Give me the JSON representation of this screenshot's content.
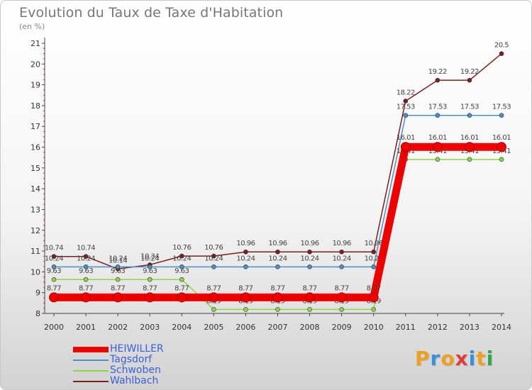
{
  "title": "Evolution du Taux de Taxe d'Habitation",
  "unit_label": "(en %)",
  "logo": {
    "letters": [
      "P",
      "r",
      "o",
      "x",
      "i",
      "t",
      "i"
    ],
    "colors": [
      "#f0a020",
      "#3a8fd8",
      "#f0a020",
      "#e23b3b",
      "#3a8fd8",
      "#f0a020",
      "#2fa84f"
    ]
  },
  "chart_data": {
    "type": "line",
    "x": [
      "2000",
      "2001",
      "2002",
      "2003",
      "2004",
      "2005",
      "2006",
      "2007",
      "2008",
      "2009",
      "2010",
      "2011",
      "2012",
      "2013",
      "2014"
    ],
    "ylim": [
      8,
      21
    ],
    "yticks": [
      "8",
      "9",
      "10",
      "11",
      "12",
      "13",
      "14",
      "15",
      "16",
      "17",
      "18",
      "19",
      "20",
      "21"
    ],
    "grid": false,
    "legend_position": "bottom-left",
    "series": [
      {
        "name": "Wahlbach",
        "color": "#7a2020",
        "values": [
          10.74,
          10.74,
          10.14,
          10.34,
          10.76,
          10.76,
          10.96,
          10.96,
          10.96,
          10.96,
          10.96,
          18.22,
          19.22,
          19.22,
          20.5
        ],
        "labels": [
          "10.74",
          "10.74",
          "10.14",
          "10.34",
          "10.76",
          "10.76",
          "10.96",
          "10.96",
          "10.96",
          "10.96",
          "10.96",
          "18.22",
          "19.22",
          "19.22",
          "20.5"
        ]
      },
      {
        "name": "Tagsdorf",
        "color": "#4d8fc4",
        "values": [
          10.24,
          10.24,
          10.24,
          10.24,
          10.24,
          10.24,
          10.24,
          10.24,
          10.24,
          10.24,
          10.24,
          17.53,
          17.53,
          17.53,
          17.53
        ],
        "labels": [
          "10.24",
          "10.24",
          "10.24",
          "10.24",
          "10.24",
          "10.24",
          "10.24",
          "10.24",
          "10.24",
          "10.24",
          "10.24",
          "17.53",
          "17.53",
          "17.53",
          "17.53"
        ]
      },
      {
        "name": "Schwoben",
        "color": "#8fd44a",
        "values": [
          9.63,
          9.63,
          9.63,
          9.63,
          9.63,
          8.19,
          8.19,
          8.19,
          8.19,
          8.19,
          8.19,
          15.41,
          15.41,
          15.41,
          15.41
        ],
        "labels": [
          "9.63",
          "9.63",
          "9.63",
          "9.63",
          "9.63",
          "8.19",
          "8.19",
          "8.19",
          "8.19",
          "8.19",
          "8.19",
          "15.41",
          "15.41",
          "15.41",
          "15.41"
        ]
      },
      {
        "name": "HEIWILLER",
        "color": "#ee0000",
        "values": [
          8.77,
          8.77,
          8.77,
          8.77,
          8.77,
          8.77,
          8.77,
          8.77,
          8.77,
          8.77,
          8.77,
          16.01,
          16.01,
          16.01,
          16.01
        ],
        "labels": [
          "8.77",
          "8.77",
          "8.77",
          "8.77",
          "8.77",
          "8.77",
          "8.77",
          "8.77",
          "8.77",
          "8.77",
          "8.77",
          "16.01",
          "16.01",
          "16.01",
          "16.01"
        ]
      }
    ],
    "legend": [
      "HEIWILLER",
      "Tagsdorf",
      "Schwoben",
      "Wahlbach"
    ]
  }
}
